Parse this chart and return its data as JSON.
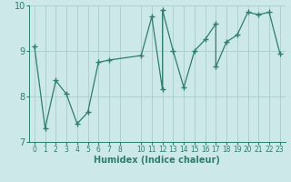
{
  "xlabel": "Humidex (Indice chaleur)",
  "ylabel": "",
  "bg_color": "#cce8e8",
  "line_color": "#2e7d6e",
  "grid_color": "#aacccc",
  "x_data": [
    0,
    1,
    2,
    3,
    4,
    5,
    6,
    7,
    10,
    11,
    12,
    12,
    13,
    14,
    15,
    16,
    17,
    17,
    18,
    19,
    20,
    21,
    22,
    23
  ],
  "y_data": [
    9.1,
    7.3,
    8.35,
    8.05,
    7.4,
    7.65,
    8.75,
    8.8,
    8.9,
    9.75,
    8.15,
    9.9,
    9.0,
    8.2,
    9.0,
    9.25,
    9.6,
    8.65,
    9.2,
    9.35,
    9.85,
    9.8,
    9.85,
    8.95
  ],
  "ylim": [
    7.0,
    10.0
  ],
  "xlim": [
    -0.5,
    23.5
  ],
  "yticks": [
    7,
    8,
    9,
    10
  ],
  "xtick_positions": [
    0,
    1,
    2,
    3,
    4,
    5,
    6,
    7,
    8,
    10,
    11,
    12,
    13,
    14,
    15,
    16,
    17,
    18,
    19,
    20,
    21,
    22,
    23
  ],
  "xtick_labels": [
    "0",
    "1",
    "2",
    "3",
    "4",
    "5",
    "6",
    "7",
    "8",
    "10",
    "11",
    "12",
    "13",
    "14",
    "15",
    "16",
    "17",
    "18",
    "19",
    "20",
    "21",
    "22",
    "23"
  ],
  "ytick_fontsize": 7,
  "xtick_fontsize": 5.5,
  "xlabel_fontsize": 7,
  "linewidth": 0.9,
  "markersize": 4
}
